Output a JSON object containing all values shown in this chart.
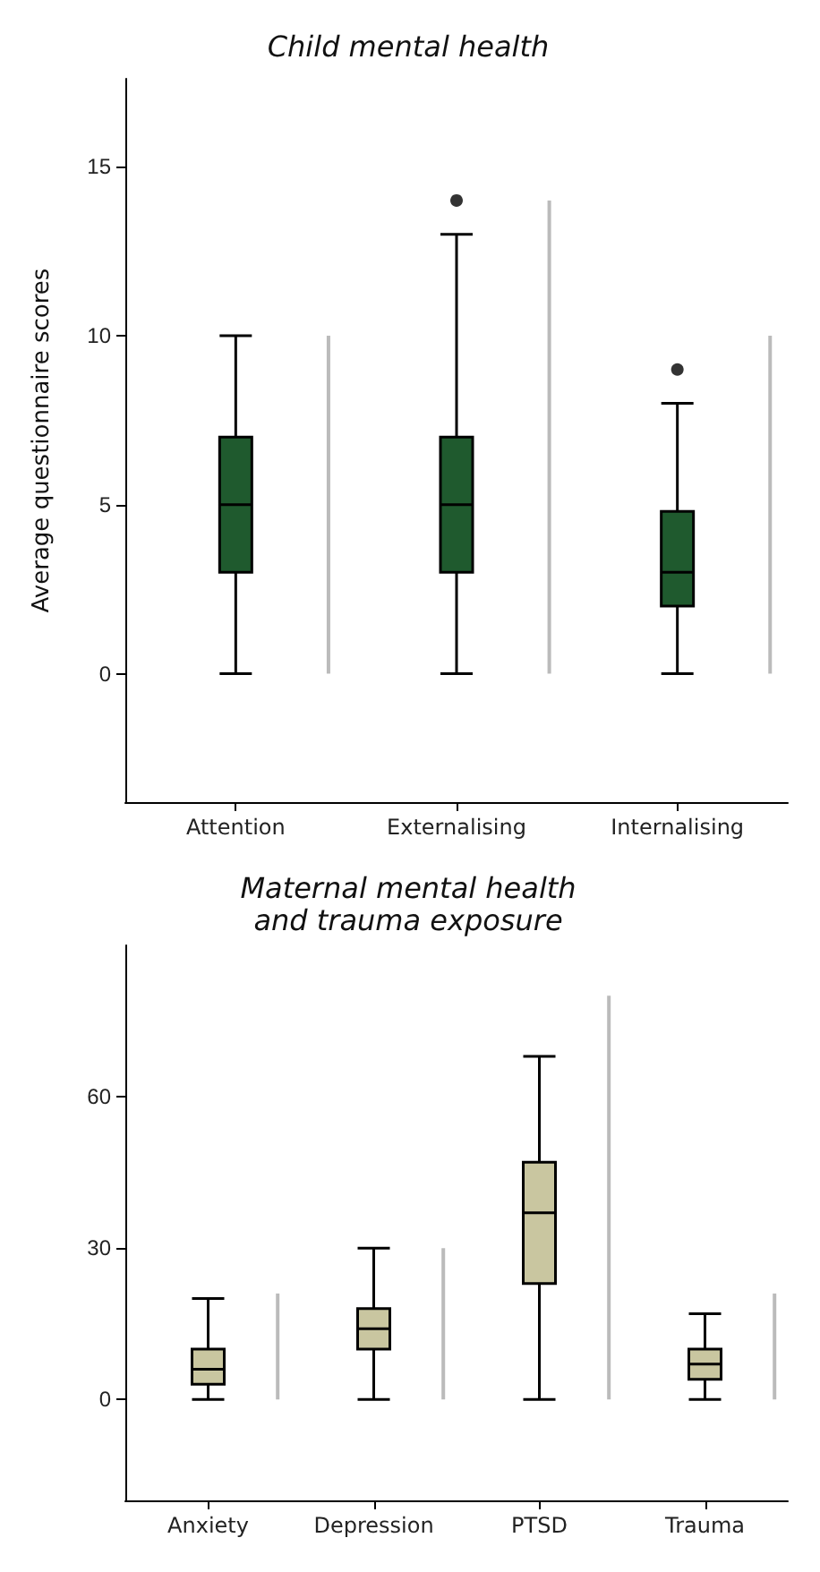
{
  "chart_data": [
    {
      "type": "box",
      "title": "Child mental health",
      "ylabel": "Average questionnaire scores",
      "categories": [
        "Attention",
        "Externalising",
        "Internalising"
      ],
      "ylim": [
        -3.8,
        17.6
      ],
      "yticks": [
        0,
        5,
        10,
        15
      ],
      "grid": false,
      "series": [
        {
          "color": "#1f5a2e",
          "boxes": [
            {
              "low": 0,
              "q1": 3,
              "median": 5,
              "q3": 7,
              "high": 10
            },
            {
              "low": 0,
              "q1": 3,
              "median": 5,
              "q3": 7,
              "high": 13,
              "outliers": [
                14
              ]
            },
            {
              "low": 0,
              "q1": 2,
              "median": 3,
              "q3": 4.8,
              "high": 8,
              "outliers": [
                9
              ]
            }
          ]
        },
        {
          "type": "bar",
          "color": "#bbbbbb",
          "base": [
            0,
            0,
            0
          ],
          "values": [
            10,
            14,
            10
          ]
        }
      ]
    },
    {
      "type": "box",
      "title": "Maternal mental health\nand trauma exposure",
      "categories": [
        "Anxiety",
        "Depression",
        "PTSD",
        "Trauma"
      ],
      "ylim": [
        -20,
        90
      ],
      "yticks": [
        0,
        30,
        60
      ],
      "grid": false,
      "series": [
        {
          "color": "#c9c6a0",
          "boxes": [
            {
              "low": 0,
              "q1": 3,
              "median": 6,
              "q3": 10,
              "high": 20
            },
            {
              "low": 0,
              "q1": 10,
              "median": 14,
              "q3": 18,
              "high": 30
            },
            {
              "low": 0,
              "q1": 23,
              "median": 37,
              "q3": 47,
              "high": 68
            },
            {
              "low": 0,
              "q1": 4,
              "median": 7,
              "q3": 10,
              "high": 17
            }
          ]
        },
        {
          "type": "bar",
          "color": "#bbbbbb",
          "base": [
            0,
            0,
            0,
            0
          ],
          "values": [
            21,
            30,
            80,
            21
          ]
        }
      ]
    }
  ]
}
